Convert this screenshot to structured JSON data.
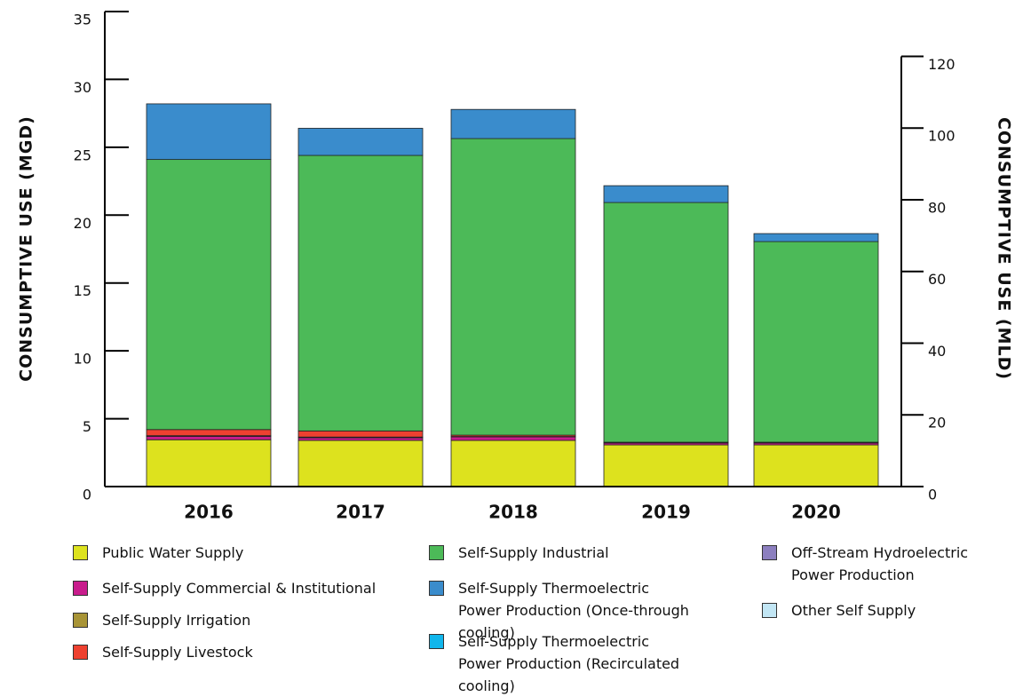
{
  "chart_data": {
    "type": "stacked_bar",
    "y_label": "CONSUMPTIVE USE (MGD)",
    "y2_label": "CONSUMPTIVE USE (MLD)",
    "categories": [
      "2016",
      "2017",
      "2018",
      "2019",
      "2020"
    ],
    "ylim": [
      0,
      35
    ],
    "yticks": [
      0,
      5,
      10,
      15,
      20,
      25,
      30,
      35
    ],
    "y2lim": [
      0,
      132.5
    ],
    "y2ticks": [
      0,
      20,
      40,
      60,
      80,
      100,
      120
    ],
    "series": [
      {
        "name": "Public Water Supply",
        "color": "#dde21e",
        "values": [
          3.45,
          3.4,
          3.4,
          3.07,
          3.07
        ]
      },
      {
        "name": "Self-Supply Commercial & Institutional",
        "color": "#c81c8c",
        "values": [
          0.25,
          0.2,
          0.26,
          0.13,
          0.13
        ]
      },
      {
        "name": "Self-Supply Irrigation",
        "color": "#a89436",
        "values": [
          0.05,
          0.05,
          0.03,
          0.02,
          0.02
        ]
      },
      {
        "name": "Self-Supply Livestock",
        "color": "#ee4130",
        "values": [
          0.45,
          0.45,
          0.1,
          0.05,
          0.05
        ]
      },
      {
        "name": "Self-Supply Industrial",
        "color": "#4cba58",
        "values": [
          19.9,
          20.3,
          21.85,
          17.66,
          14.78
        ]
      },
      {
        "name": "Self-Supply Thermoelectric Power Production (Once-through cooling)",
        "color": "#3a8ccc",
        "values": [
          4.1,
          2.0,
          2.15,
          1.24,
          0.59
        ]
      },
      {
        "name": "Self-Supply Thermoelectric Power Production (Recirculated cooling)",
        "color": "#10b6ec",
        "values": [
          0,
          0,
          0,
          0,
          0
        ]
      },
      {
        "name": "Off-Stream Hydroelectric Power Production",
        "color": "#8c7fbf",
        "values": [
          0,
          0,
          0,
          0,
          0
        ]
      },
      {
        "name": "Other Self Supply",
        "color": "#c2e6f4",
        "values": [
          0,
          0,
          0,
          0,
          0
        ]
      }
    ]
  }
}
